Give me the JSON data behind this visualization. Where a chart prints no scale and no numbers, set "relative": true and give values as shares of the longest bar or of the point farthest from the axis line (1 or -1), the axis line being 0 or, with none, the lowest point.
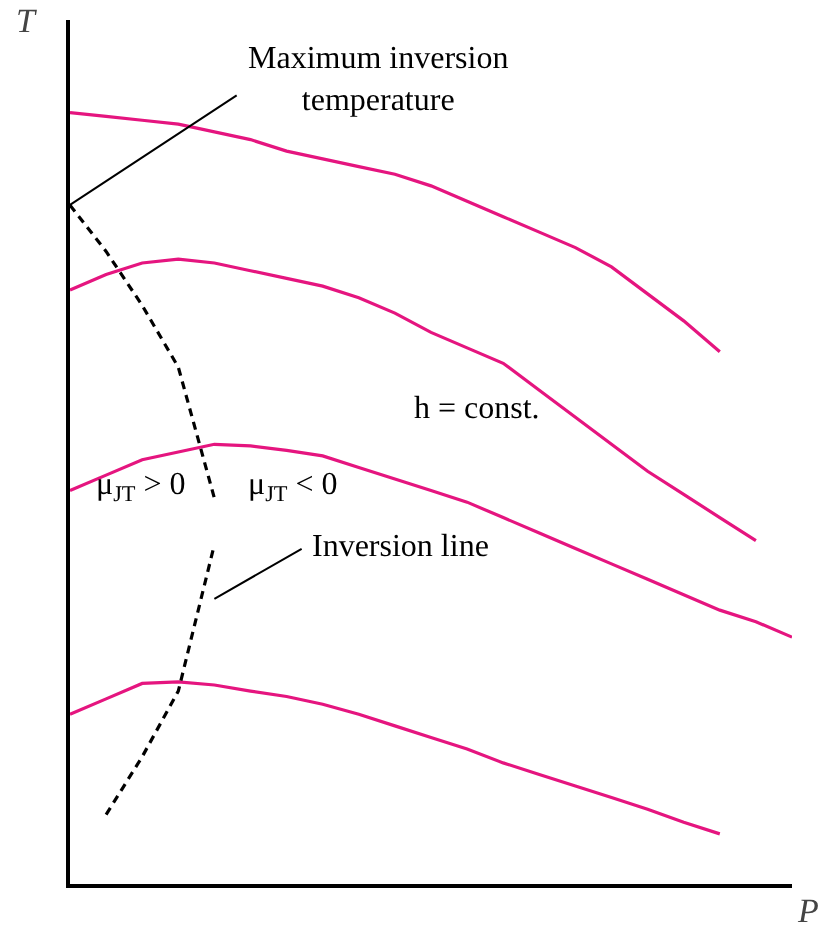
{
  "chart_data": {
    "type": "line",
    "relative": true,
    "xlabel": "P",
    "ylabel": "T",
    "grid": false,
    "marker": "none",
    "categories": [
      null,
      null,
      null,
      null,
      null,
      null,
      null,
      null,
      null,
      null,
      null,
      null,
      null,
      null,
      null,
      null,
      null,
      null,
      null,
      null,
      null
    ],
    "series": [
      {
        "color": "#e5157f",
        "values": [
          1.0,
          0.995,
          0.99,
          0.985,
          0.975,
          0.965,
          0.95,
          0.94,
          0.93,
          0.92,
          0.905,
          0.885,
          0.865,
          0.845,
          0.825,
          0.8,
          0.765,
          0.73,
          0.69,
          null,
          null
        ]
      },
      {
        "color": "#e5157f",
        "values": [
          0.77,
          0.79,
          0.805,
          0.81,
          0.805,
          0.795,
          0.785,
          0.775,
          0.76,
          0.74,
          0.715,
          0.695,
          0.675,
          0.64,
          0.605,
          0.57,
          0.535,
          0.505,
          0.475,
          0.445,
          null
        ]
      },
      {
        "color": "#e5157f",
        "values": [
          0.51,
          0.53,
          0.55,
          0.56,
          0.57,
          0.568,
          0.562,
          0.555,
          0.54,
          0.525,
          0.51,
          0.495,
          0.475,
          0.455,
          0.435,
          0.415,
          0.395,
          0.375,
          0.355,
          0.34,
          0.32
        ]
      },
      {
        "color": "#e5157f",
        "values": [
          0.22,
          0.24,
          0.26,
          0.262,
          0.258,
          0.25,
          0.243,
          0.233,
          0.22,
          0.205,
          0.19,
          0.175,
          0.157,
          0.142,
          0.127,
          0.112,
          0.097,
          0.08,
          0.065,
          null,
          null
        ]
      },
      {
        "color": "#000000",
        "line_style": "dashed",
        "values": [
          0.88,
          0.82,
          0.75,
          0.67,
          0.5,
          null,
          null,
          null,
          null,
          null,
          null,
          null,
          null,
          null,
          null,
          null,
          null,
          null,
          null,
          null,
          null
        ]
      },
      {
        "color": "#000000",
        "line_style": "dashed",
        "values": [
          null,
          0.09,
          0.165,
          0.25,
          0.44,
          null,
          null,
          null,
          null,
          null,
          null,
          null,
          null,
          null,
          null,
          null,
          null,
          null,
          null,
          null,
          null
        ]
      }
    ],
    "annotations": [
      "Maximum inversion temperature",
      "Inversion line",
      "μ$_{JT}$ > 0",
      "μ$_{JT}$ < 0",
      "h = const."
    ]
  }
}
